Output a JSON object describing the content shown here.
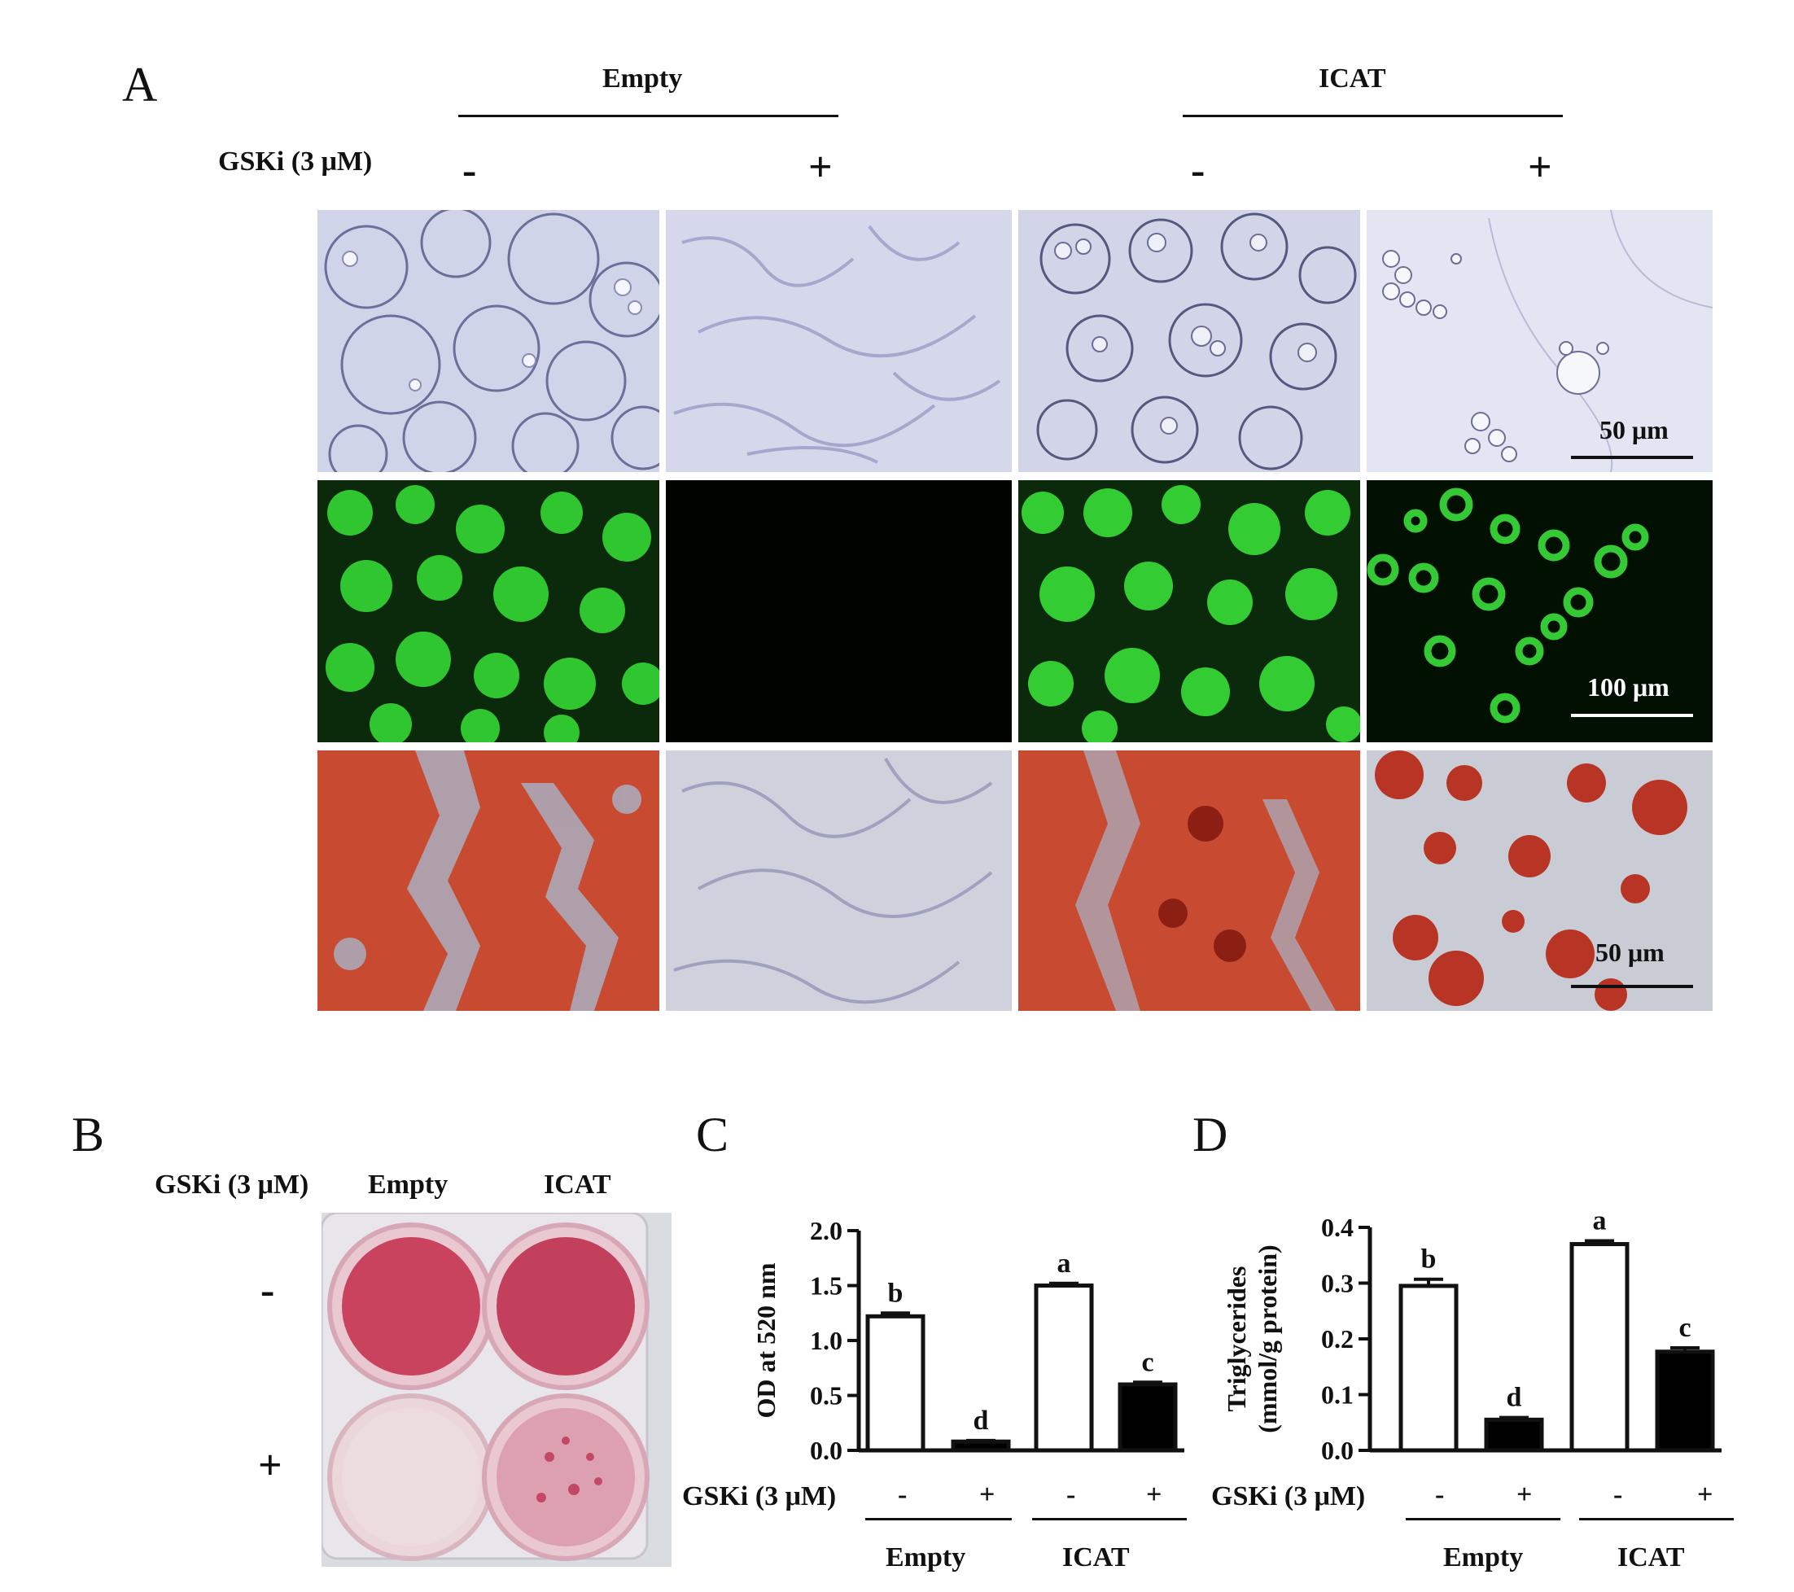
{
  "panel_a": {
    "letter": "A",
    "groups": [
      "Empty",
      "ICAT"
    ],
    "treatment_label": "GSKi (3 μM)",
    "signs": [
      "-",
      "+",
      "-",
      "+"
    ],
    "scale_bars": [
      "50 μm",
      "100 μm",
      "50 μm"
    ],
    "image_rows": [
      "brightfield",
      "bodipy-fluorescence",
      "oil-red-o-stain"
    ]
  },
  "panel_b": {
    "letter": "B",
    "treatment_label": "GSKi (3 μM)",
    "columns": [
      "Empty",
      "ICAT"
    ],
    "rows": [
      "-",
      "+"
    ]
  },
  "panel_c": {
    "letter": "C",
    "treatment_label": "GSKi (3 μM)",
    "signs": [
      "-",
      "+",
      "-",
      "+"
    ],
    "groups": [
      "Empty",
      "ICAT"
    ]
  },
  "panel_d": {
    "letter": "D",
    "treatment_label": "GSKi (3 μM)",
    "signs": [
      "-",
      "+",
      "-",
      "+"
    ],
    "groups": [
      "Empty",
      "ICAT"
    ]
  },
  "chart_data": [
    {
      "type": "bar",
      "panel": "C",
      "ylabel": "OD at 520 nm",
      "ylim": [
        0,
        2.0
      ],
      "yticks": [
        "0.0",
        "0.5",
        "1.0",
        "1.5",
        "2.0"
      ],
      "categories": [
        "Empty -",
        "Empty +",
        "ICAT -",
        "ICAT +"
      ],
      "values": [
        1.22,
        0.08,
        1.5,
        0.6
      ],
      "errors": [
        0.03,
        0.01,
        0.02,
        0.02
      ],
      "fills": [
        "#ffffff",
        "#000000",
        "#ffffff",
        "#000000"
      ],
      "letters": [
        "b",
        "d",
        "a",
        "c"
      ]
    },
    {
      "type": "bar",
      "panel": "D",
      "ylabel": "Triglycerides (mmol/g protein)",
      "ylabel_lines": [
        "Triglycerides",
        "(mmol/g protein)"
      ],
      "ylim": [
        0,
        0.4
      ],
      "yticks": [
        "0.0",
        "0.1",
        "0.2",
        "0.3",
        "0.4"
      ],
      "categories": [
        "Empty -",
        "Empty +",
        "ICAT -",
        "ICAT +"
      ],
      "values": [
        0.295,
        0.055,
        0.37,
        0.177
      ],
      "errors": [
        0.012,
        0.004,
        0.006,
        0.007
      ],
      "fills": [
        "#ffffff",
        "#000000",
        "#ffffff",
        "#000000"
      ],
      "letters": [
        "b",
        "d",
        "a",
        "c"
      ]
    }
  ]
}
